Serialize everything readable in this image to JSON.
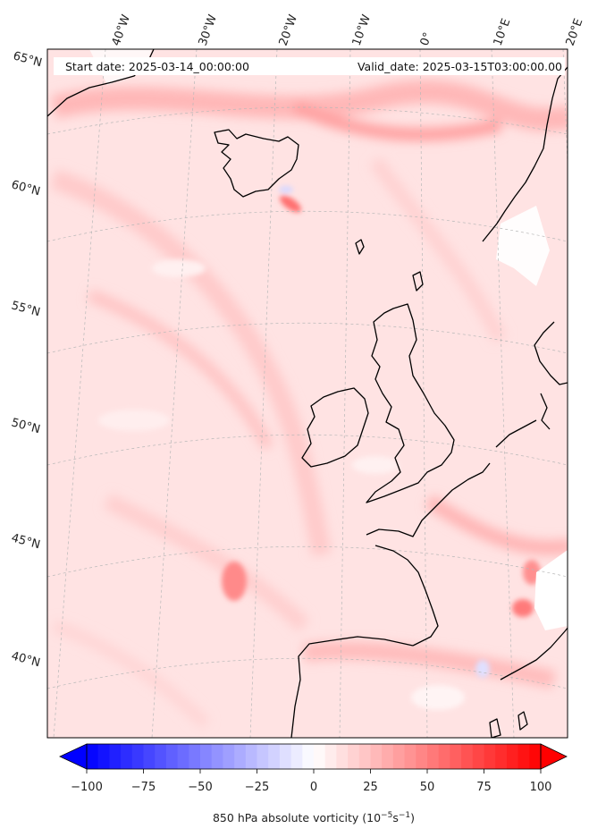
{
  "header": {
    "start_date": "Start date: 2025-03-14_00:00:00",
    "valid_date": "Valid_date: 2025-03-15T03:00:00.00"
  },
  "longitude_labels": [
    "40°W",
    "30°W",
    "20°W",
    "10°W",
    "0°",
    "10°E",
    "20°E"
  ],
  "latitude_labels": [
    "65°N",
    "60°N",
    "55°N",
    "50°N",
    "45°N",
    "40°N"
  ],
  "colorbar": {
    "label_text": "850 hPa absolute vorticity (10",
    "label_exp1": "−5",
    "label_mid": "s",
    "label_exp2": "−1",
    "label_end": ")",
    "min": -100,
    "max": 100,
    "ticks": [
      {
        "value": -100,
        "text": "−100"
      },
      {
        "value": -75,
        "text": "−75"
      },
      {
        "value": -50,
        "text": "−50"
      },
      {
        "value": -25,
        "text": "−25"
      },
      {
        "value": 0,
        "text": "0"
      },
      {
        "value": 25,
        "text": "25"
      },
      {
        "value": 50,
        "text": "50"
      },
      {
        "value": 75,
        "text": "75"
      },
      {
        "value": 100,
        "text": "100"
      }
    ],
    "negative_color": "#0000ff",
    "positive_color": "#ff0000"
  },
  "colors": {
    "background_field": "#ffe4e4",
    "land_outline": "#000000",
    "gridline": "#b0b0b0"
  }
}
